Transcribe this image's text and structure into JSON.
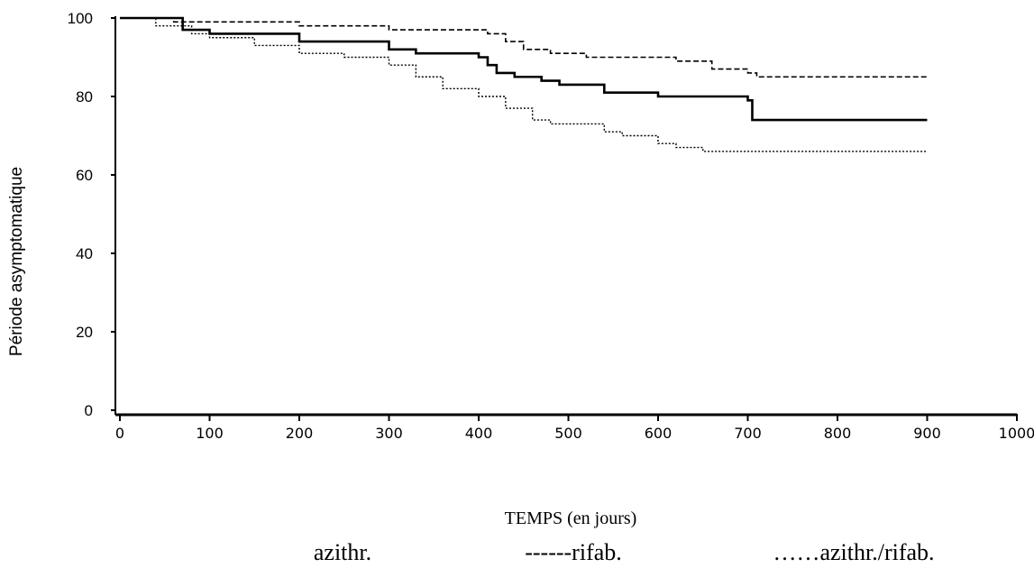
{
  "chart_data": {
    "type": "line",
    "title": "",
    "xlabel": "TEMPS (en jours)",
    "ylabel": "Période asymptomatique",
    "xlim": [
      0,
      1000
    ],
    "ylim": [
      0,
      100
    ],
    "x_ticks": [
      "0",
      "100",
      "200",
      "300",
      "400",
      "500",
      "600",
      "700",
      "800",
      "900",
      "1000"
    ],
    "y_ticks": [
      "0",
      "20",
      "40",
      "60",
      "80",
      "100"
    ],
    "grid": false,
    "legend_position": "bottom",
    "series": [
      {
        "name": "azithr.",
        "style": "solid",
        "x": [
          0,
          55,
          70,
          100,
          160,
          200,
          260,
          300,
          330,
          370,
          400,
          410,
          420,
          440,
          470,
          490,
          540,
          600,
          650,
          700,
          705,
          715,
          900
        ],
        "y": [
          100,
          100,
          97,
          96,
          96,
          94,
          94,
          92,
          91,
          91,
          90,
          88,
          86,
          85,
          84,
          83,
          81,
          80,
          80,
          79,
          74,
          74,
          74
        ]
      },
      {
        "name": "rifab.",
        "style": "dashed",
        "x": [
          0,
          60,
          200,
          300,
          350,
          400,
          410,
          430,
          450,
          480,
          520,
          600,
          620,
          660,
          700,
          710,
          900
        ],
        "y": [
          100,
          99,
          98,
          97,
          97,
          97,
          96,
          94,
          92,
          91,
          90,
          90,
          89,
          87,
          86,
          85,
          85
        ]
      },
      {
        "name": "azithr./rifab.",
        "style": "dotted",
        "x": [
          0,
          40,
          80,
          100,
          150,
          200,
          250,
          300,
          330,
          360,
          400,
          430,
          460,
          480,
          520,
          540,
          560,
          600,
          620,
          650,
          700,
          900
        ],
        "y": [
          100,
          98,
          96,
          95,
          93,
          91,
          90,
          88,
          85,
          82,
          80,
          77,
          74,
          73,
          73,
          71,
          70,
          68,
          67,
          66,
          66,
          66
        ]
      }
    ],
    "legend_entries": [
      "azithr.",
      "------rifab.",
      "……azithr./rifab."
    ]
  }
}
